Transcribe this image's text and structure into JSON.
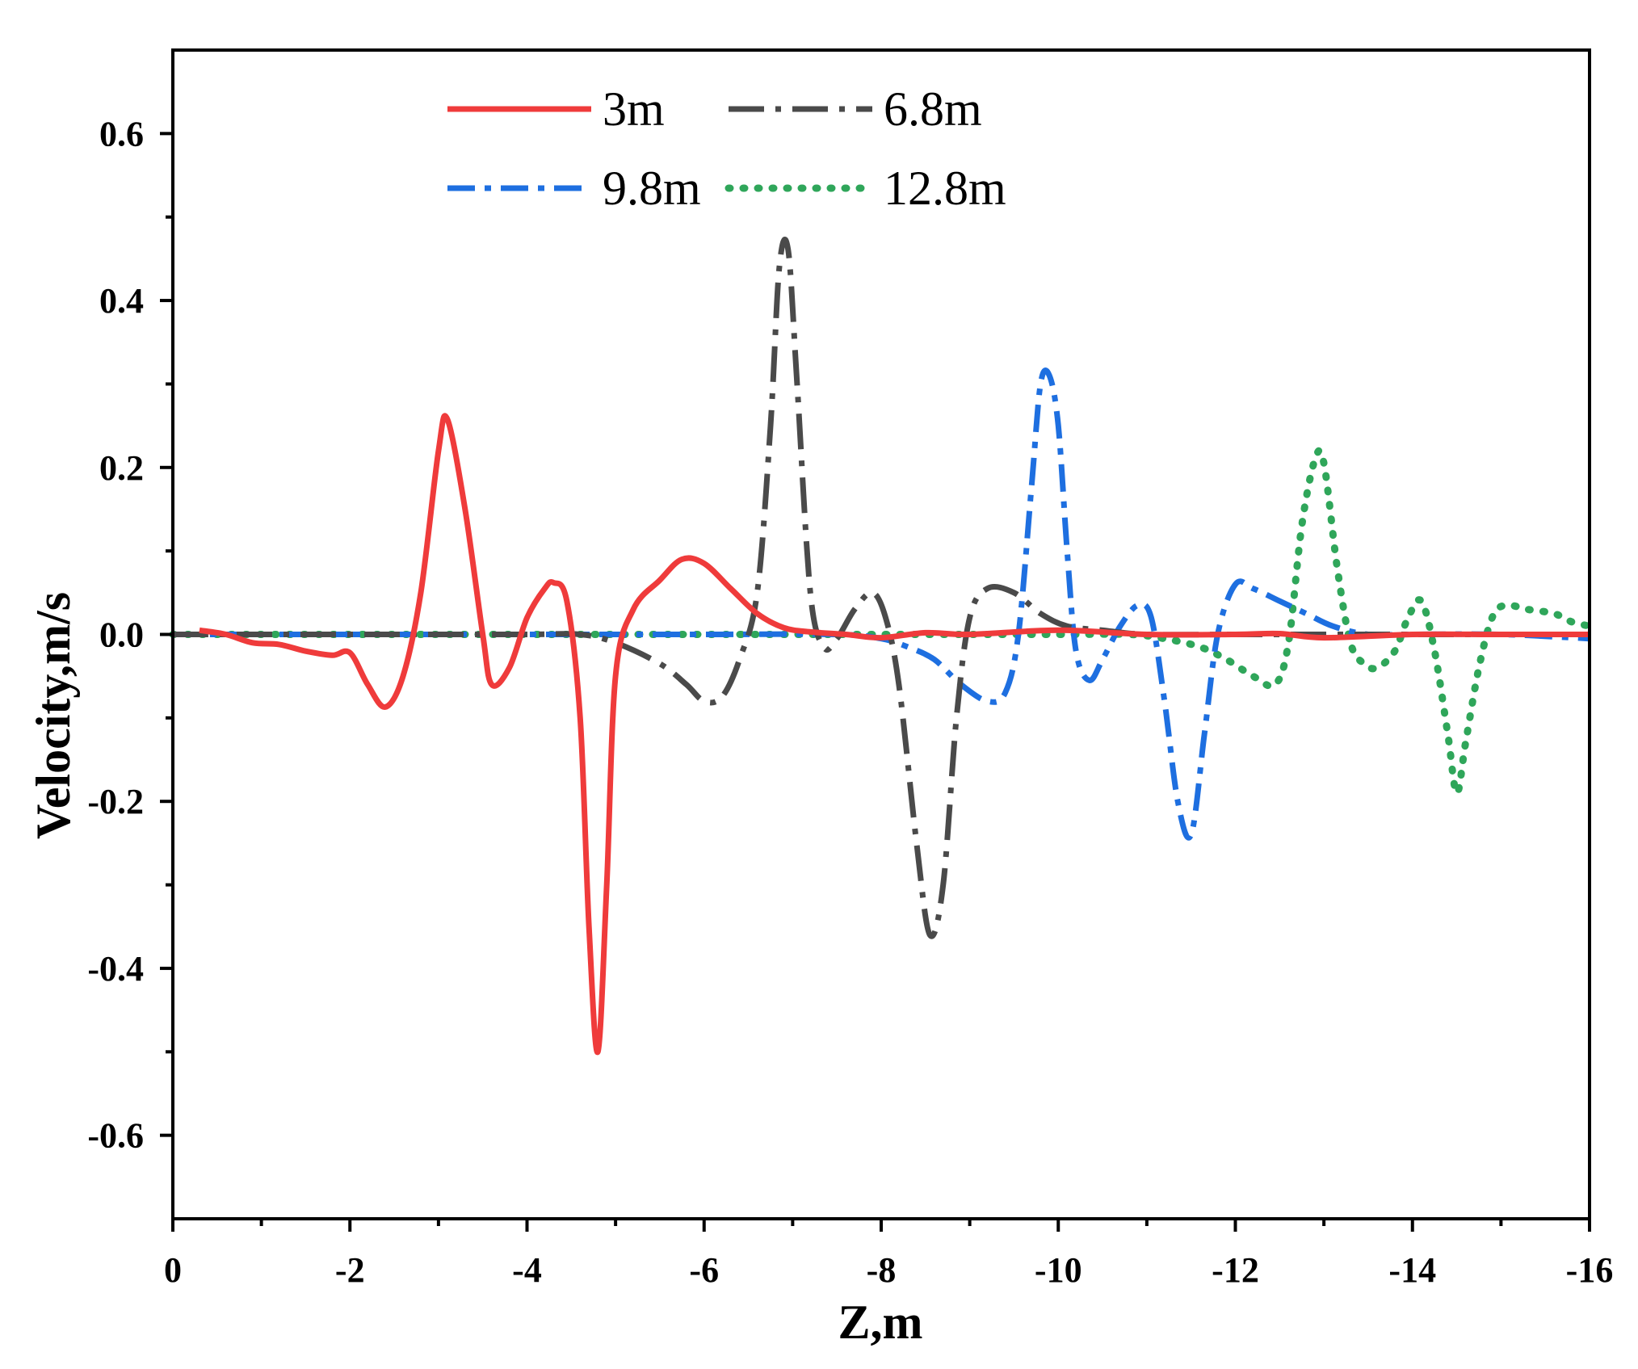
{
  "chart_data": {
    "type": "line",
    "title": "",
    "xlabel": "Z,m",
    "ylabel": "Velocity,m/s",
    "xlim": [
      0,
      -16
    ],
    "ylim": [
      -0.7,
      0.7
    ],
    "xticks": [
      0,
      -2,
      -4,
      -6,
      -8,
      -10,
      -12,
      -14,
      -16
    ],
    "xtick_labels": [
      "0",
      "-2",
      "-4",
      "-6",
      "-8",
      "-10",
      "-12",
      "-14",
      "-16"
    ],
    "yticks": [
      -0.6,
      -0.4,
      -0.2,
      0.0,
      0.2,
      0.4,
      0.6
    ],
    "ytick_labels": [
      "-0.6",
      "-0.4",
      "-0.2",
      "0.0",
      "0.2",
      "0.4",
      "0.6"
    ],
    "grid": false,
    "legend_position": "top",
    "series": [
      {
        "name": "3m",
        "color": "#ef3b3b",
        "dash": "solid",
        "x": [
          -0.3,
          -0.6,
          -0.9,
          -1.2,
          -1.5,
          -1.8,
          -2.0,
          -2.2,
          -2.4,
          -2.6,
          -2.8,
          -3.0,
          -3.1,
          -3.3,
          -3.5,
          -3.6,
          -3.8,
          -4.0,
          -4.2,
          -4.3,
          -4.45,
          -4.6,
          -4.7,
          -4.8,
          -4.9,
          -5.0,
          -5.2,
          -5.5,
          -5.75,
          -6.0,
          -6.3,
          -6.6,
          -6.9,
          -7.2,
          -7.6,
          -8.0,
          -8.5,
          -9.0,
          -10.0,
          -11.0,
          -12.0,
          -12.5,
          -13.0,
          -14.0,
          -15.0,
          -16.0
        ],
        "y": [
          0.005,
          0.0,
          -0.01,
          -0.012,
          -0.02,
          -0.025,
          -0.022,
          -0.06,
          -0.087,
          -0.05,
          0.05,
          0.22,
          0.258,
          0.15,
          0.0,
          -0.06,
          -0.04,
          0.02,
          0.055,
          0.062,
          0.04,
          -0.1,
          -0.35,
          -0.5,
          -0.3,
          -0.05,
          0.03,
          0.065,
          0.09,
          0.085,
          0.055,
          0.025,
          0.008,
          0.003,
          0.0,
          -0.004,
          0.002,
          0.0,
          0.005,
          0.0,
          0.0,
          0.001,
          -0.004,
          0.0,
          0.0,
          0.0
        ]
      },
      {
        "name": "6.8m",
        "color": "#4a4a4a",
        "dash": "dashdot",
        "x": [
          0.0,
          -1.0,
          -2.0,
          -3.0,
          -4.0,
          -4.6,
          -5.0,
          -5.5,
          -5.8,
          -6.0,
          -6.2,
          -6.4,
          -6.6,
          -6.75,
          -6.85,
          -6.95,
          -7.05,
          -7.2,
          -7.35,
          -7.5,
          -7.7,
          -7.9,
          -8.05,
          -8.2,
          -8.4,
          -8.55,
          -8.7,
          -8.85,
          -9.0,
          -9.2,
          -9.5,
          -9.8,
          -10.1,
          -10.5,
          -11.0,
          -12.0,
          -13.0,
          -14.0,
          -15.0,
          -16.0
        ],
        "y": [
          0.0,
          0.0,
          0.0,
          0.0,
          0.0,
          0.0,
          -0.01,
          -0.035,
          -0.06,
          -0.08,
          -0.075,
          -0.03,
          0.05,
          0.25,
          0.44,
          0.46,
          0.3,
          0.05,
          -0.015,
          -0.005,
          0.03,
          0.05,
          0.02,
          -0.06,
          -0.25,
          -0.36,
          -0.3,
          -0.1,
          0.02,
          0.055,
          0.05,
          0.025,
          0.01,
          0.005,
          0.0,
          0.0,
          0.0,
          0.0,
          0.0,
          0.0
        ]
      },
      {
        "name": "9.8m",
        "color": "#1e6fe0",
        "dash": "dash",
        "x": [
          0.0,
          -2.0,
          -4.0,
          -6.0,
          -7.5,
          -8.0,
          -8.3,
          -8.6,
          -8.9,
          -9.2,
          -9.4,
          -9.55,
          -9.7,
          -9.8,
          -9.9,
          -10.0,
          -10.1,
          -10.2,
          -10.35,
          -10.5,
          -10.7,
          -10.9,
          -11.05,
          -11.2,
          -11.35,
          -11.5,
          -11.65,
          -11.8,
          -12.0,
          -12.2,
          -12.5,
          -12.8,
          -13.1,
          -13.5,
          -14.0,
          -15.0,
          -16.0
        ],
        "y": [
          0.0,
          0.0,
          0.0,
          0.0,
          0.0,
          -0.005,
          -0.015,
          -0.03,
          -0.06,
          -0.08,
          -0.07,
          0.0,
          0.18,
          0.3,
          0.31,
          0.25,
          0.1,
          -0.02,
          -0.055,
          -0.03,
          0.01,
          0.035,
          0.02,
          -0.08,
          -0.2,
          -0.24,
          -0.12,
          0.0,
          0.06,
          0.055,
          0.04,
          0.025,
          0.01,
          0.0,
          0.0,
          0.0,
          -0.005
        ]
      },
      {
        "name": "12.8m",
        "color": "#2fa65a",
        "dash": "dot",
        "x": [
          0.0,
          -2.0,
          -4.0,
          -6.0,
          -8.0,
          -10.0,
          -10.8,
          -11.2,
          -11.6,
          -11.9,
          -12.2,
          -12.45,
          -12.6,
          -12.75,
          -12.9,
          -13.0,
          -13.15,
          -13.3,
          -13.45,
          -13.6,
          -13.8,
          -13.95,
          -14.1,
          -14.25,
          -14.4,
          -14.5,
          -14.6,
          -14.75,
          -14.9,
          -15.05,
          -15.3,
          -15.6,
          -15.8,
          -16.0
        ],
        "y": [
          0.0,
          0.0,
          0.0,
          0.0,
          0.0,
          0.0,
          0.0,
          -0.005,
          -0.015,
          -0.03,
          -0.05,
          -0.06,
          -0.01,
          0.13,
          0.21,
          0.205,
          0.08,
          -0.01,
          -0.035,
          -0.04,
          -0.02,
          0.02,
          0.04,
          -0.02,
          -0.12,
          -0.19,
          -0.13,
          -0.04,
          0.02,
          0.035,
          0.03,
          0.025,
          0.015,
          0.01
        ]
      }
    ]
  }
}
